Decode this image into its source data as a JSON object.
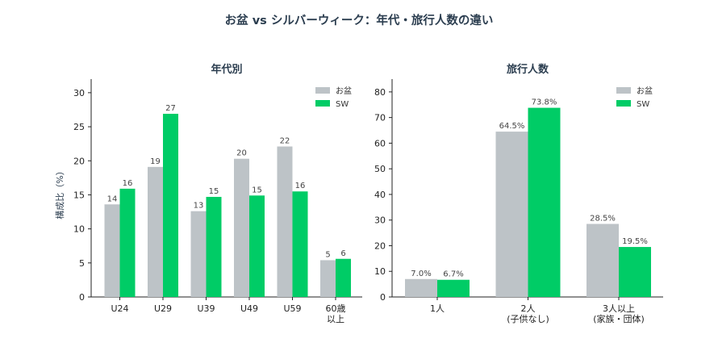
{
  "figure": {
    "title": "お盆 vs シルバーウィーク：年代・旅行人数の違い"
  },
  "colors": {
    "obon": "#bdc3c7",
    "sw": "#00cc66",
    "axis": "#222222",
    "title": "#2c3e50"
  },
  "chart_data": [
    {
      "type": "bar",
      "title": "年代別",
      "xlabel": "",
      "ylabel": "構成比（%）",
      "ylim": [
        0,
        32
      ],
      "yticks": [
        0,
        5,
        10,
        15,
        20,
        25,
        30
      ],
      "categories": [
        "U24",
        "U29",
        "U39",
        "U49",
        "U59",
        "60歳\n以上"
      ],
      "series": [
        {
          "name": "お盆",
          "values": [
            13.6,
            19.1,
            12.6,
            20.3,
            22.1,
            5.4
          ],
          "labels": [
            "14",
            "19",
            "13",
            "20",
            "22",
            "5"
          ]
        },
        {
          "name": "SW",
          "values": [
            15.9,
            26.9,
            14.7,
            14.9,
            15.5,
            5.6
          ],
          "labels": [
            "16",
            "27",
            "15",
            "15",
            "16",
            "6"
          ]
        }
      ],
      "legend_position": "top-right",
      "grid": false
    },
    {
      "type": "bar",
      "title": "旅行人数",
      "xlabel": "",
      "ylabel": "",
      "ylim": [
        0,
        85
      ],
      "yticks": [
        0,
        10,
        20,
        30,
        40,
        50,
        60,
        70,
        80
      ],
      "categories": [
        "1人",
        "2人\n(子供なし)",
        "3人以上\n(家族・団体)"
      ],
      "series": [
        {
          "name": "お盆",
          "values": [
            7.0,
            64.5,
            28.5
          ],
          "labels": [
            "7.0%",
            "64.5%",
            "28.5%"
          ]
        },
        {
          "name": "SW",
          "values": [
            6.7,
            73.8,
            19.5
          ],
          "labels": [
            "6.7%",
            "73.8%",
            "19.5%"
          ]
        }
      ],
      "legend_position": "top-right",
      "grid": false
    }
  ]
}
